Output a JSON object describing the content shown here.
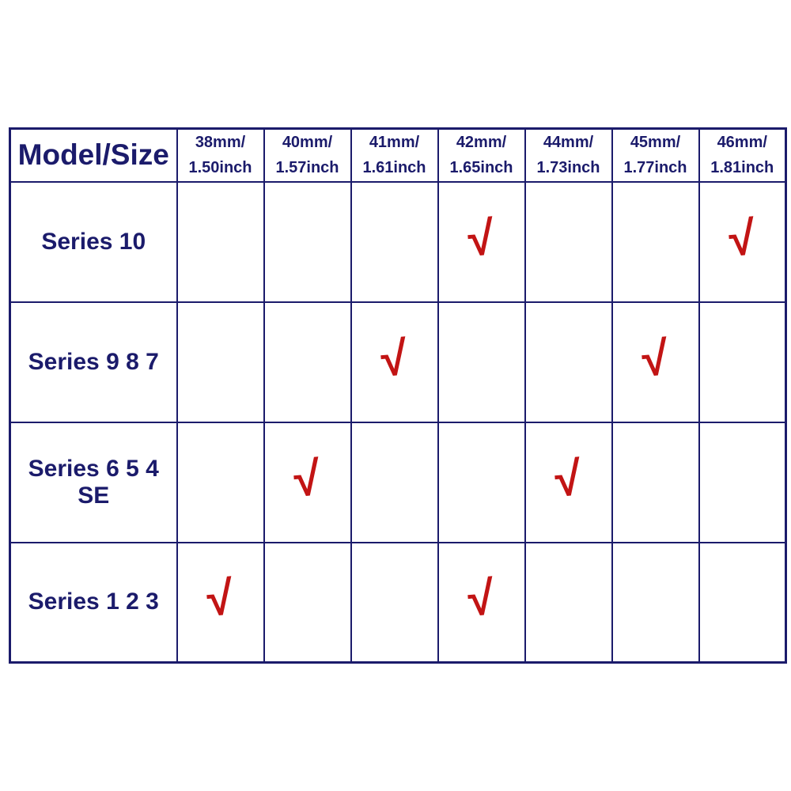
{
  "page": {
    "background_color": "#ffffff"
  },
  "colors": {
    "table_line_navy": "#1b1b6b",
    "text_navy": "#1b1b6b",
    "check_red": "#c21414"
  },
  "table": {
    "corner_label": "Model/Size",
    "check_symbol": "√",
    "columns": [
      {
        "line1": "38mm/",
        "line2": "1.50inch"
      },
      {
        "line1": "40mm/",
        "line2": "1.57inch"
      },
      {
        "line1": "41mm/",
        "line2": "1.61inch"
      },
      {
        "line1": "42mm/",
        "line2": "1.65inch"
      },
      {
        "line1": "44mm/",
        "line2": "1.73inch"
      },
      {
        "line1": "45mm/",
        "line2": "1.77inch"
      },
      {
        "line1": "46mm/",
        "line2": "1.81inch"
      }
    ],
    "rows": [
      {
        "label": "Series 10",
        "cells": [
          "",
          "",
          "",
          "√",
          "",
          "",
          "√"
        ]
      },
      {
        "label": "Series 9 8 7",
        "cells": [
          "",
          "",
          "√",
          "",
          "",
          "√",
          ""
        ]
      },
      {
        "label": "Series 6 5 4 SE",
        "cells": [
          "",
          "√",
          "",
          "",
          "√",
          "",
          ""
        ]
      },
      {
        "label": "Series 1 2 3",
        "cells": [
          "√",
          "",
          "",
          "√",
          "",
          "",
          ""
        ]
      }
    ]
  },
  "chart_data": {
    "type": "table",
    "columns": [
      "Model/Size",
      "38mm/1.50inch",
      "40mm/1.57inch",
      "41mm/1.61inch",
      "42mm/1.65inch",
      "44mm/1.73inch",
      "45mm/1.77inch",
      "46mm/1.81inch"
    ],
    "rows": [
      {
        "model": "Series 10",
        "compatible_sizes": [
          "42mm/1.65inch",
          "46mm/1.81inch"
        ],
        "checks": [
          false,
          false,
          false,
          true,
          false,
          false,
          true
        ]
      },
      {
        "model": "Series 9 8 7",
        "compatible_sizes": [
          "41mm/1.61inch",
          "45mm/1.77inch"
        ],
        "checks": [
          false,
          false,
          true,
          false,
          false,
          true,
          false
        ]
      },
      {
        "model": "Series 6 5 4 SE",
        "compatible_sizes": [
          "40mm/1.57inch",
          "44mm/1.73inch"
        ],
        "checks": [
          false,
          true,
          false,
          false,
          true,
          false,
          false
        ]
      },
      {
        "model": "Series 1 2 3",
        "compatible_sizes": [
          "38mm/1.50inch",
          "42mm/1.65inch"
        ],
        "checks": [
          true,
          false,
          false,
          true,
          false,
          false,
          false
        ]
      }
    ],
    "checked_symbol": "√",
    "title": "",
    "legend_position": "none",
    "grid": true
  }
}
